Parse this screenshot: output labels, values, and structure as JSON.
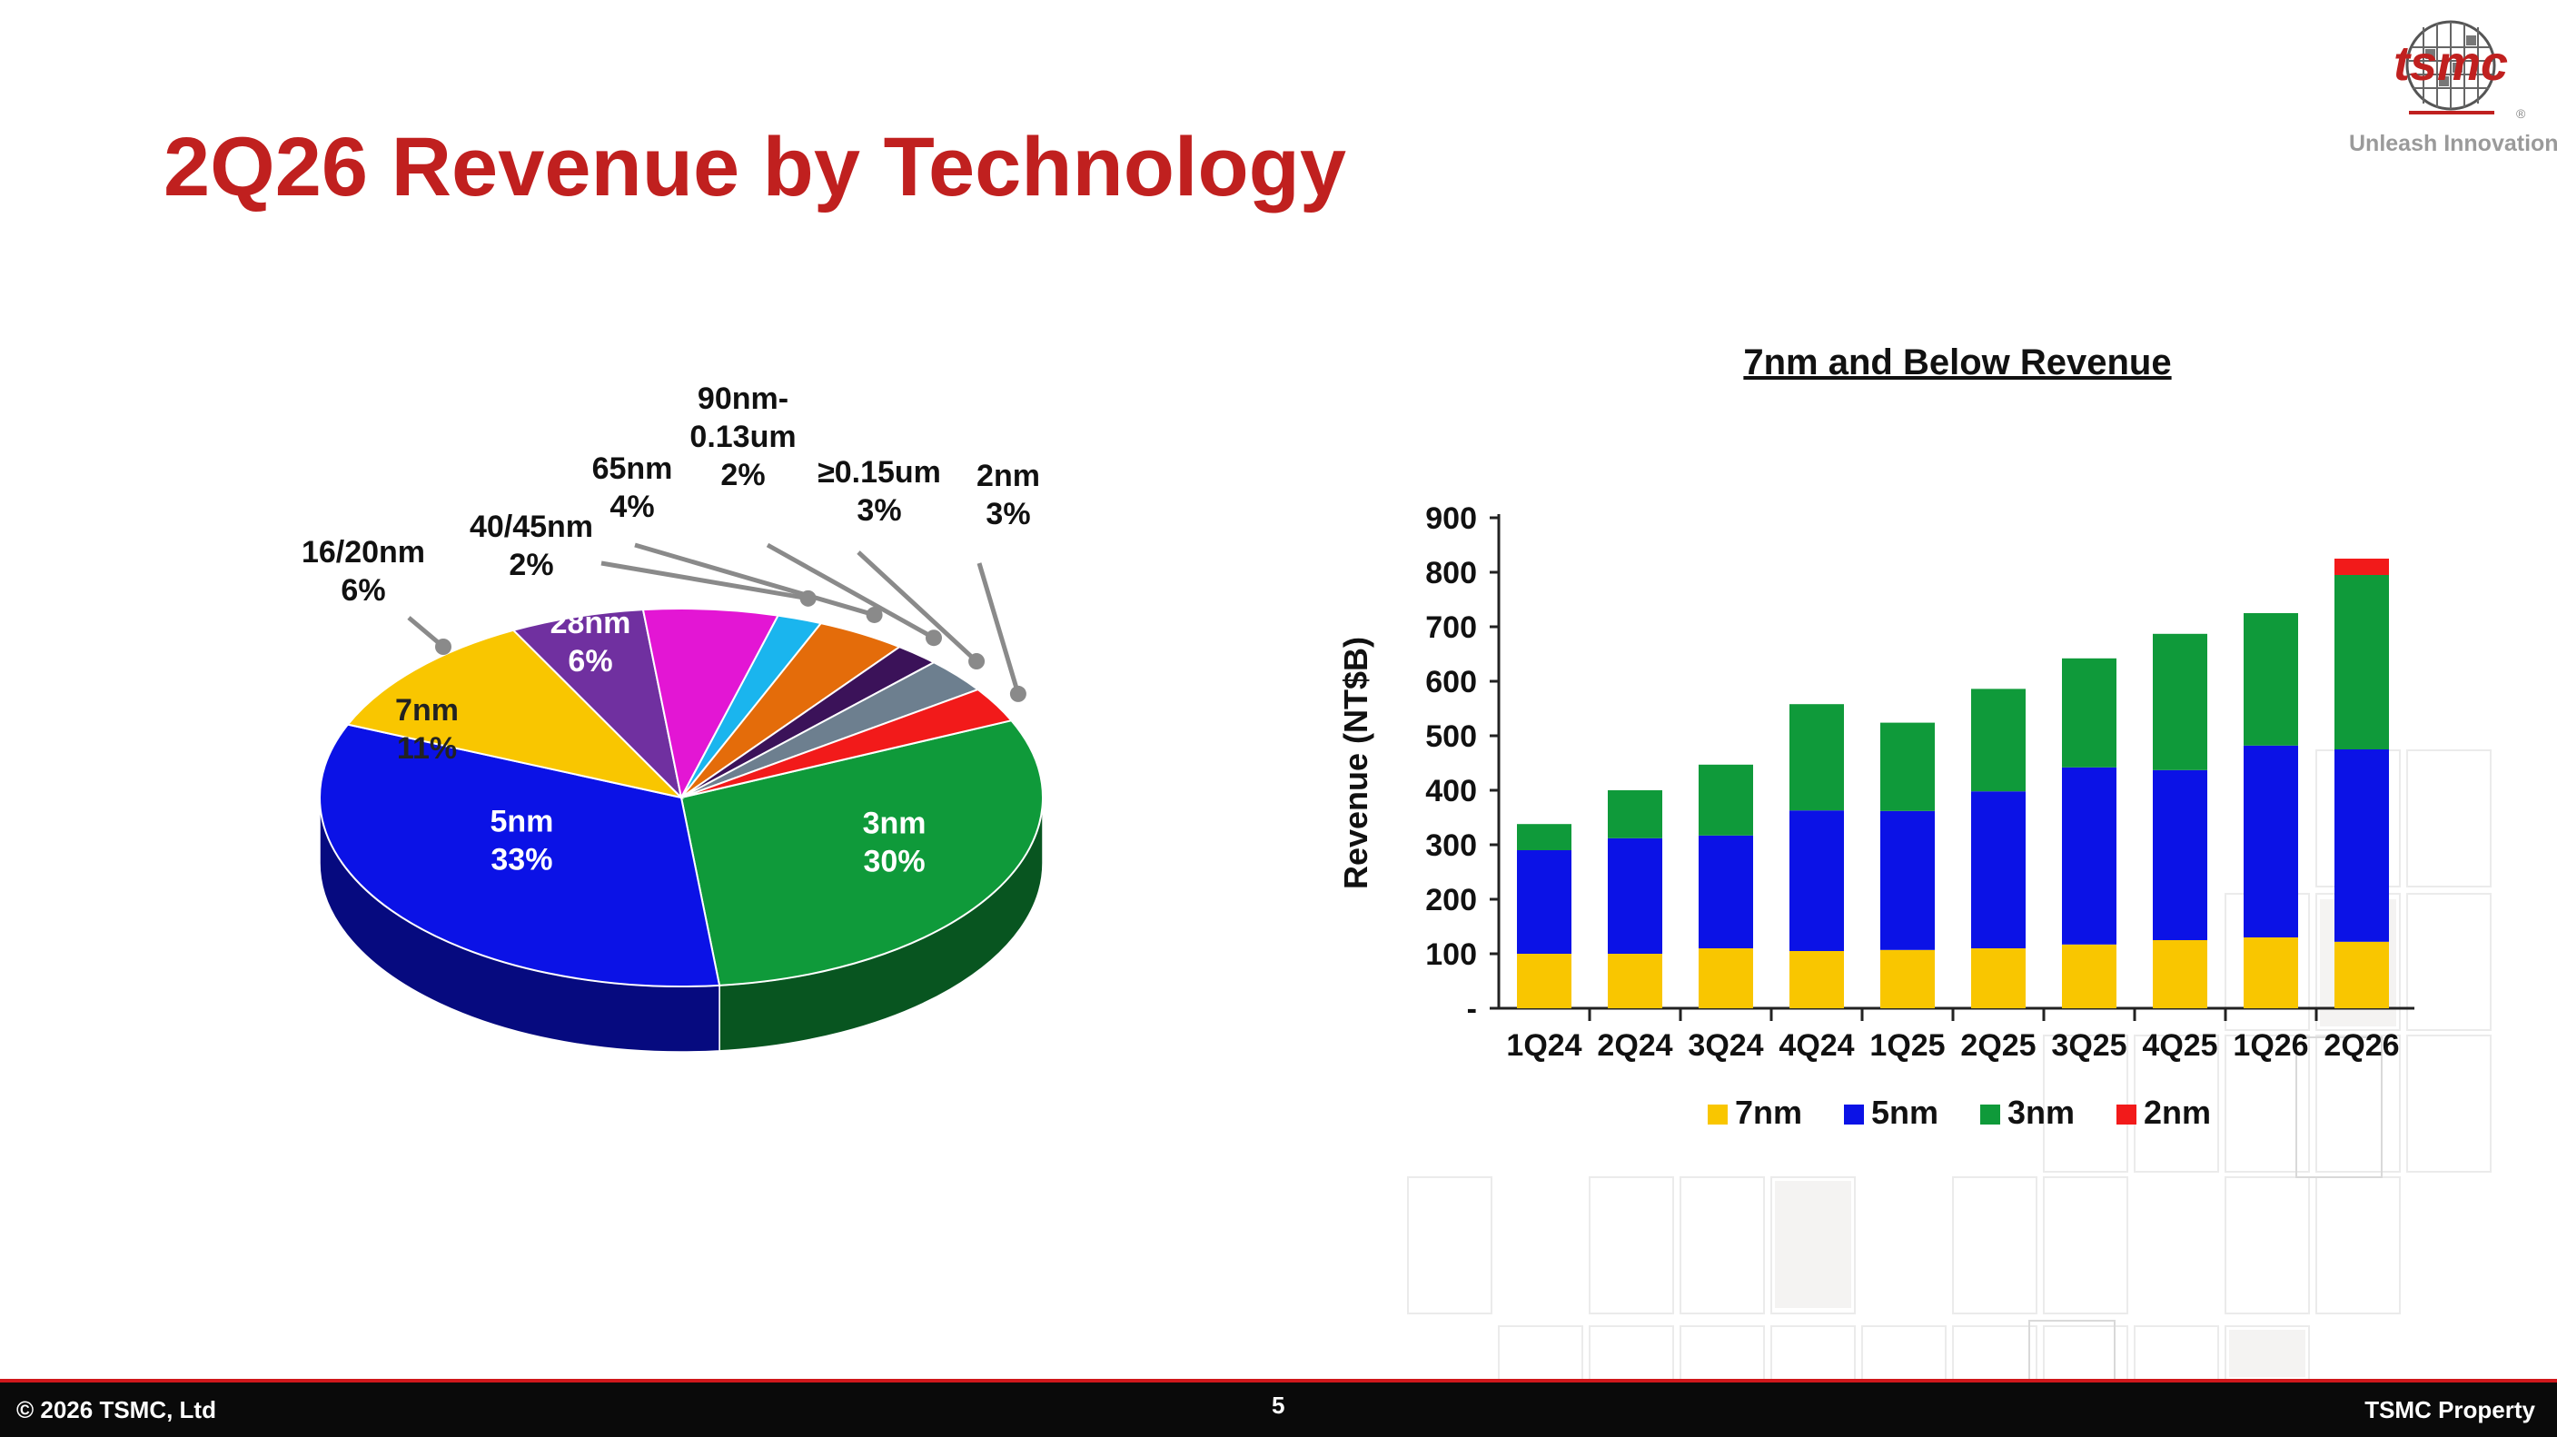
{
  "slide": {
    "title": "2Q26 Revenue by Technology",
    "logo_text": "tsmc",
    "logo_mark": "®",
    "tagline": "Unleash Innovation",
    "footer_left": "© 2026 TSMC, Ltd",
    "page_number": "5",
    "footer_right": "TSMC Property",
    "colors": {
      "title": "#c0201f",
      "footer_bg": "#0a0a0a",
      "footer_line": "#d0181c"
    }
  },
  "chart_data": [
    {
      "type": "pie",
      "title": "",
      "slices": [
        {
          "label": "3nm",
          "value": 30,
          "pct_label": "30%",
          "color": "#0f9a3a"
        },
        {
          "label": "5nm",
          "value": 33,
          "pct_label": "33%",
          "color": "#0b12e6"
        },
        {
          "label": "7nm",
          "value": 11,
          "pct_label": "11%",
          "color": "#f9c600"
        },
        {
          "label": "16/20nm",
          "value": 6,
          "pct_label": "6%",
          "color": "#7030a0"
        },
        {
          "label": "28nm",
          "value": 6,
          "pct_label": "6%",
          "color": "#e316d4"
        },
        {
          "label": "40/45nm",
          "value": 2,
          "pct_label": "2%",
          "color": "#1ab5ee"
        },
        {
          "label": "65nm",
          "value": 4,
          "pct_label": "4%",
          "color": "#e46c0a"
        },
        {
          "label": "90nm-\n0.13um",
          "value": 2,
          "pct_label": "2%",
          "color": "#3b1259"
        },
        {
          "label": "≥0.15um",
          "value": 3,
          "pct_label": "3%",
          "color": "#6d7f8f"
        },
        {
          "label": "2nm",
          "value": 3,
          "pct_label": "3%",
          "color": "#f21a1a"
        }
      ]
    },
    {
      "type": "bar",
      "stacked": true,
      "title": "7nm and Below Revenue",
      "ylabel": "Revenue (NT$B)",
      "xlabel": "",
      "ylim": [
        0,
        900
      ],
      "yticks": [
        "-",
        "100",
        "200",
        "300",
        "400",
        "500",
        "600",
        "700",
        "800",
        "900"
      ],
      "categories": [
        "1Q24",
        "2Q24",
        "3Q24",
        "4Q24",
        "1Q25",
        "2Q25",
        "3Q25",
        "4Q25",
        "1Q26",
        "2Q26"
      ],
      "series": [
        {
          "name": "7nm",
          "color": "#f9c600",
          "values": [
            100,
            100,
            110,
            105,
            107,
            110,
            117,
            125,
            130,
            122
          ]
        },
        {
          "name": "5nm",
          "color": "#0b12e6",
          "values": [
            190,
            212,
            207,
            258,
            255,
            288,
            325,
            312,
            352,
            353
          ]
        },
        {
          "name": "3nm",
          "color": "#0f9a3a",
          "values": [
            48,
            88,
            130,
            195,
            162,
            188,
            200,
            250,
            243,
            320
          ]
        },
        {
          "name": "2nm",
          "color": "#f21a1a",
          "values": [
            0,
            0,
            0,
            0,
            0,
            0,
            0,
            0,
            0,
            30
          ]
        }
      ],
      "legend_position": "bottom",
      "grid": false
    }
  ]
}
